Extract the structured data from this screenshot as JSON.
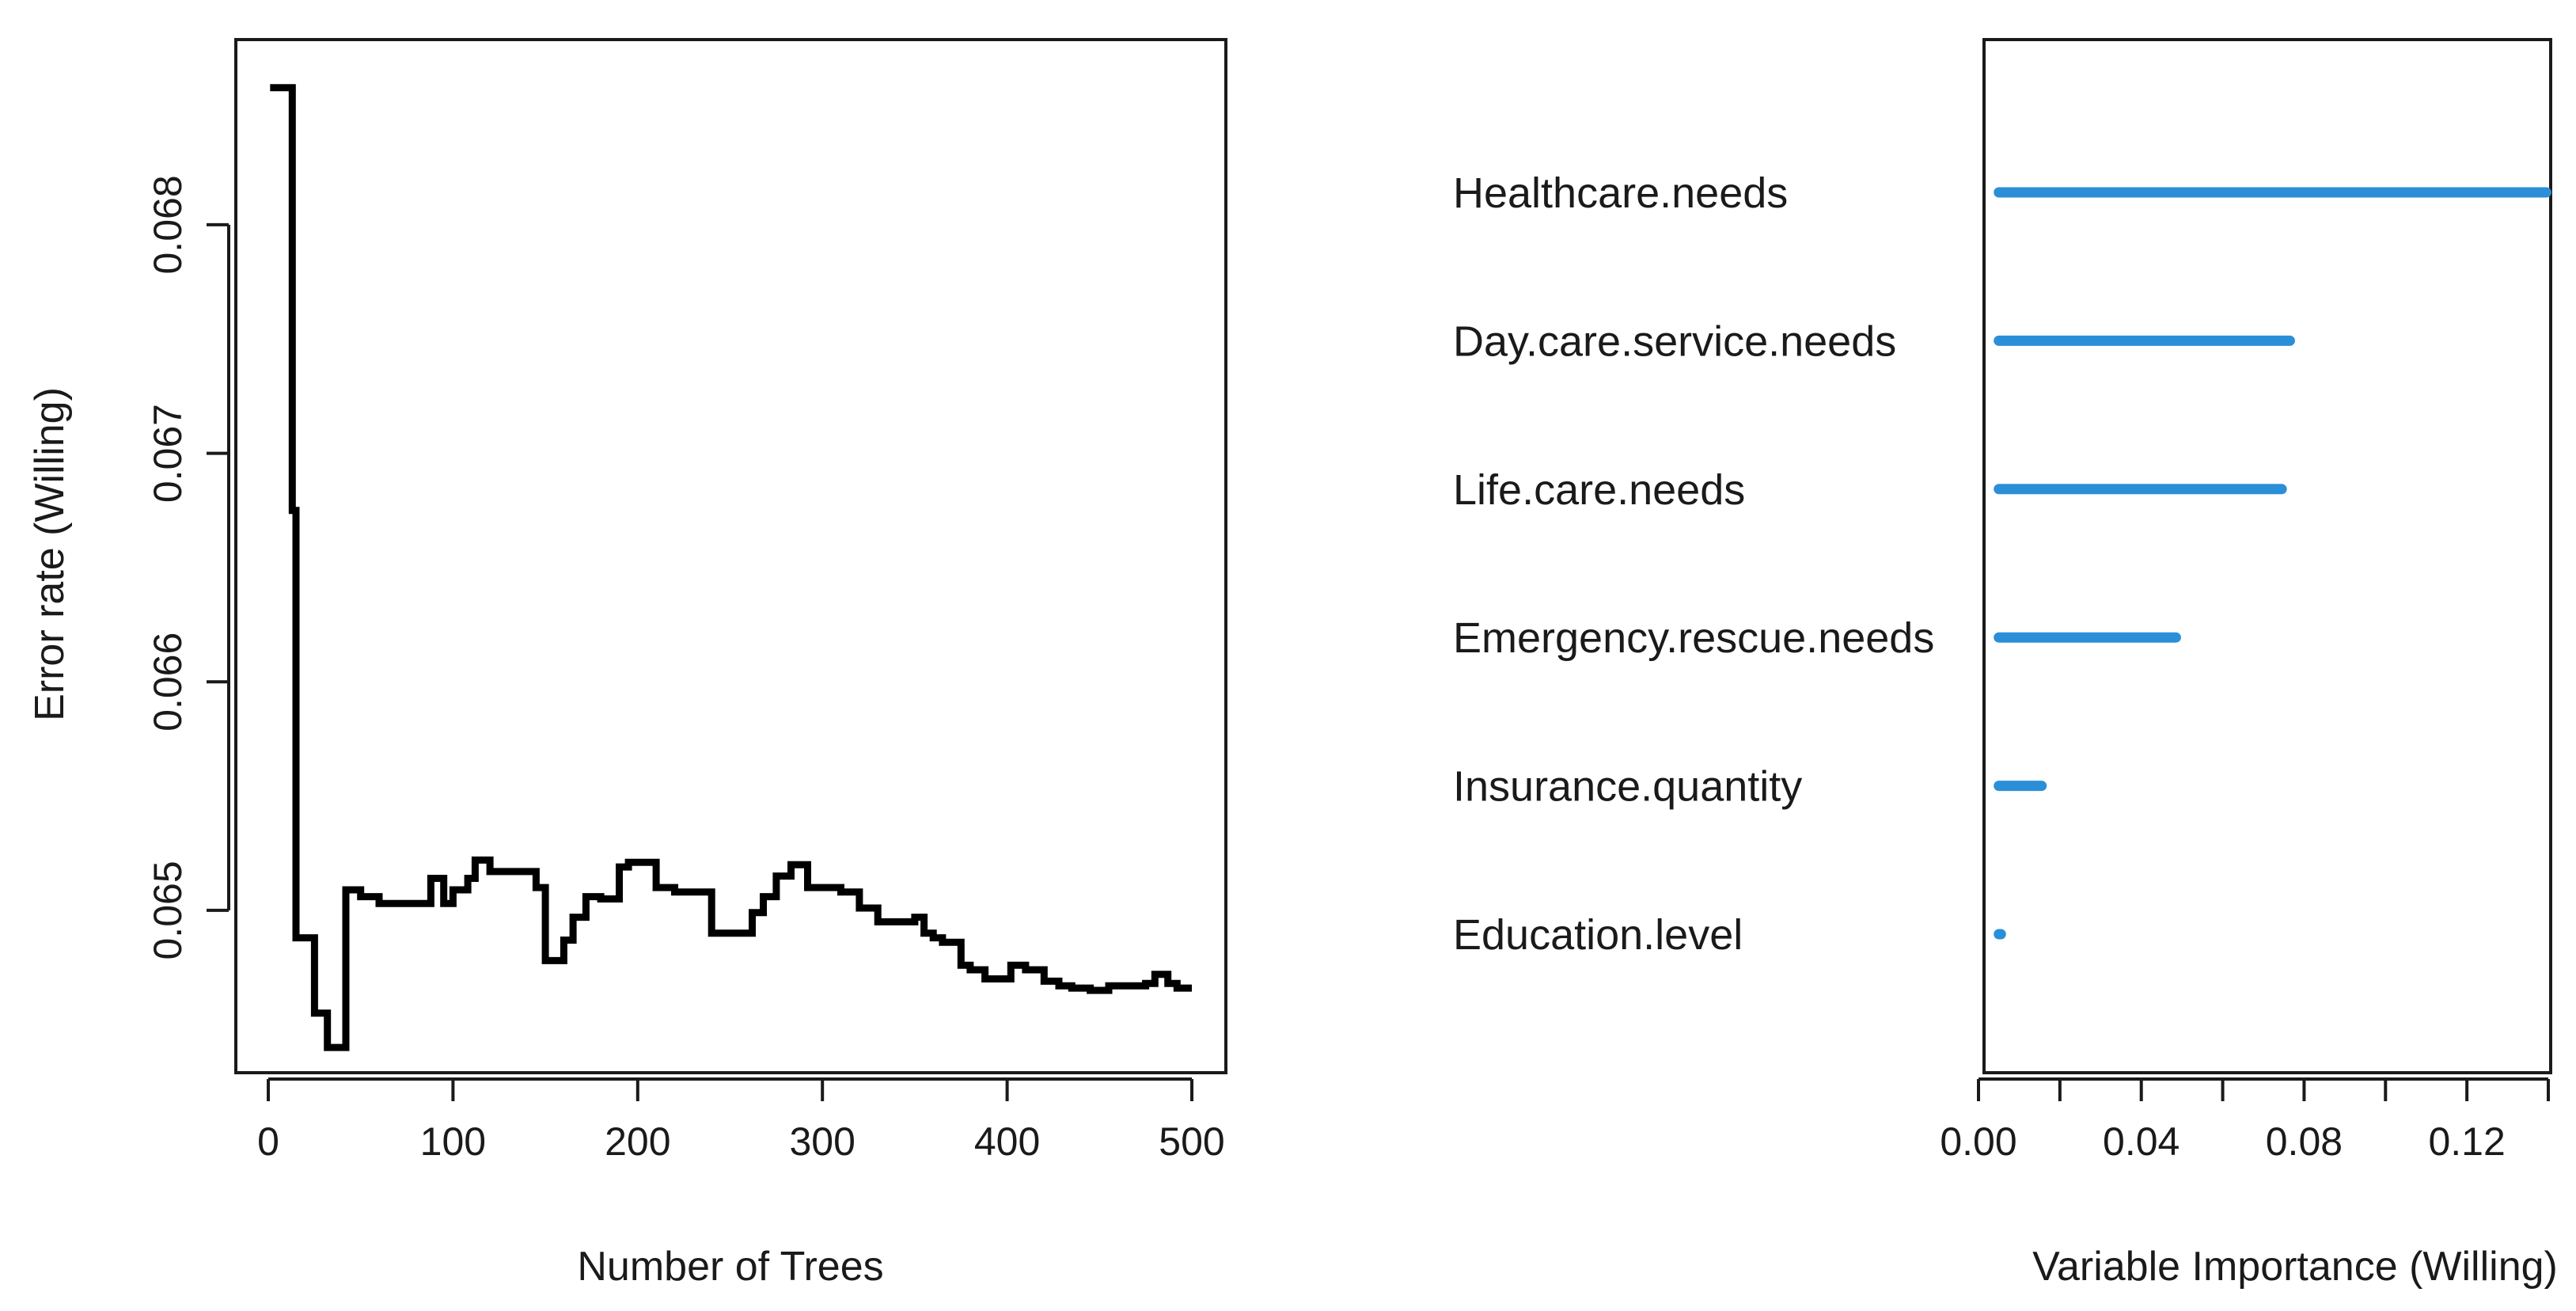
{
  "chart_data": [
    {
      "type": "line",
      "title": "",
      "xlabel": "Number of Trees",
      "ylabel": "Error rate (Willing)",
      "xlim": [
        0,
        500
      ],
      "ylim": [
        0.0643,
        0.0688
      ],
      "xticks": [
        0,
        100,
        200,
        300,
        400,
        500
      ],
      "xtick_labels": [
        "0",
        "100",
        "200",
        "300",
        "400",
        "500"
      ],
      "yticks": [
        0.065,
        0.066,
        0.067,
        0.068
      ],
      "ytick_labels": [
        "0.065",
        "0.066",
        "0.067",
        "0.068"
      ],
      "series": [
        {
          "name": "Error rate (Willing)",
          "step": true,
          "x": [
            1,
            12,
            13,
            15,
            20,
            25,
            32,
            40,
            42,
            50,
            60,
            80,
            88,
            95,
            100,
            108,
            112,
            120,
            130,
            145,
            150,
            160,
            165,
            172,
            180,
            190,
            195,
            200,
            205,
            210,
            220,
            240,
            250,
            262,
            268,
            275,
            283,
            292,
            300,
            310,
            320,
            330,
            340,
            350,
            355,
            360,
            365,
            375,
            380,
            388,
            395,
            402,
            410,
            420,
            428,
            435,
            445,
            455,
            465,
            475,
            480,
            487,
            492,
            500
          ],
          "values": [
            0.0686,
            0.0686,
            0.06675,
            0.06488,
            0.06488,
            0.06455,
            0.0644,
            0.0644,
            0.06509,
            0.06506,
            0.06503,
            0.06503,
            0.06514,
            0.06503,
            0.06509,
            0.06514,
            0.06522,
            0.06517,
            0.06517,
            0.0651,
            0.06478,
            0.06487,
            0.06497,
            0.06506,
            0.06505,
            0.06519,
            0.06521,
            0.06521,
            0.06521,
            0.0651,
            0.06508,
            0.0649,
            0.0649,
            0.06499,
            0.06506,
            0.06515,
            0.0652,
            0.0651,
            0.0651,
            0.06508,
            0.06501,
            0.06495,
            0.06495,
            0.06497,
            0.0649,
            0.06488,
            0.06486,
            0.06476,
            0.06474,
            0.0647,
            0.0647,
            0.06476,
            0.06474,
            0.06469,
            0.06467,
            0.06466,
            0.06465,
            0.06467,
            0.06467,
            0.06468,
            0.06472,
            0.06468,
            0.06466,
            0.06466
          ]
        }
      ]
    },
    {
      "type": "bar",
      "orientation": "horizontal",
      "title": "",
      "xlabel": "Variable Importance (Willing)",
      "ylabel": "",
      "xlim": [
        0,
        0.14
      ],
      "xticks": [
        0.0,
        0.02,
        0.04,
        0.06,
        0.08,
        0.1,
        0.12,
        0.14
      ],
      "xtick_labels": [
        "0.00",
        "",
        "0.04",
        "",
        "0.08",
        "",
        "0.12",
        ""
      ],
      "categories": [
        "Healthcare.needs",
        "Day.care.service.needs",
        "Life.care.needs",
        "Emergency.rescue.needs",
        "Insurance.quantity",
        "Education.level"
      ],
      "values": [
        0.1395,
        0.0765,
        0.0745,
        0.0485,
        0.0155,
        0.0055
      ],
      "bar_start": 0.005,
      "color": "#2b8fd8"
    }
  ]
}
